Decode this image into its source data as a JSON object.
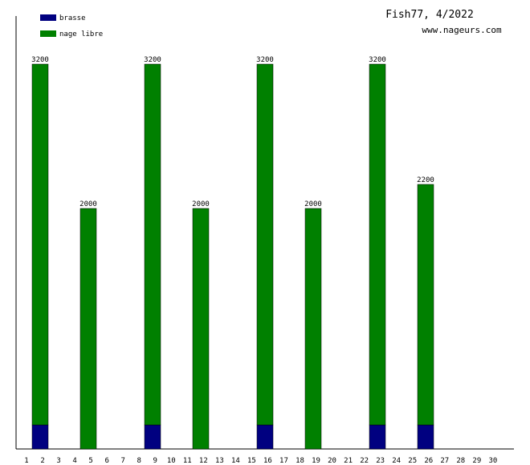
{
  "chart_data": {
    "type": "stacked-bar",
    "title": "Fish77, 4/2022",
    "subtitle": "www.nageurs.com",
    "categories": [
      "1",
      "2",
      "3",
      "4",
      "5",
      "6",
      "7",
      "8",
      "9",
      "10",
      "11",
      "12",
      "13",
      "14",
      "15",
      "16",
      "17",
      "18",
      "19",
      "20",
      "21",
      "22",
      "23",
      "24",
      "25",
      "26",
      "27",
      "28",
      "29",
      "30"
    ],
    "series": [
      {
        "name": "brasse",
        "color": "#000080",
        "values": [
          null,
          200,
          null,
          null,
          0,
          null,
          null,
          null,
          200,
          null,
          null,
          0,
          null,
          null,
          null,
          200,
          null,
          null,
          0,
          null,
          null,
          null,
          200,
          null,
          null,
          200,
          null,
          null,
          null,
          null
        ]
      },
      {
        "name": "nage libre",
        "color": "#008000",
        "values": [
          null,
          3000,
          null,
          null,
          2000,
          null,
          null,
          null,
          3000,
          null,
          null,
          2000,
          null,
          null,
          null,
          3000,
          null,
          null,
          2000,
          null,
          null,
          null,
          3000,
          null,
          null,
          2000,
          null,
          null,
          null,
          null
        ]
      }
    ],
    "totals": [
      null,
      3200,
      null,
      null,
      2000,
      null,
      null,
      null,
      3200,
      null,
      null,
      2000,
      null,
      null,
      null,
      3200,
      null,
      null,
      2000,
      null,
      null,
      null,
      3200,
      null,
      null,
      2200,
      null,
      null,
      null,
      null
    ],
    "ylim": [
      0,
      3600
    ],
    "legend": "top-left"
  }
}
